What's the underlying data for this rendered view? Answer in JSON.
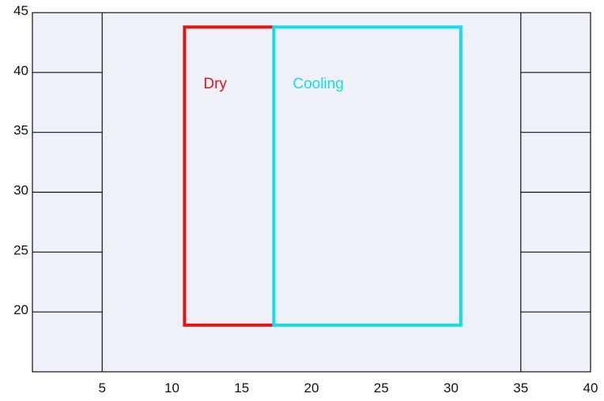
{
  "chart_data": {
    "type": "region",
    "xlim": [
      0,
      40
    ],
    "ylim": [
      15,
      45
    ],
    "x_ticks": [
      5,
      10,
      15,
      20,
      25,
      30,
      35,
      40
    ],
    "y_ticks": [
      20,
      25,
      30,
      35,
      40,
      45
    ],
    "vertical_lines_x": [
      5,
      35
    ],
    "side_gridlines_y": [
      20,
      25,
      30,
      35,
      40
    ],
    "plot_background": "#eef1f8",
    "regions": [
      {
        "name": "Dry",
        "color": "#ee1111",
        "x": [
          10.9,
          17.3
        ],
        "y": [
          18.9,
          43.8
        ],
        "open_side": "right"
      },
      {
        "name": "Cooling",
        "color": "#11ddee",
        "x": [
          17.3,
          30.7
        ],
        "y": [
          18.9,
          43.8
        ]
      }
    ]
  }
}
